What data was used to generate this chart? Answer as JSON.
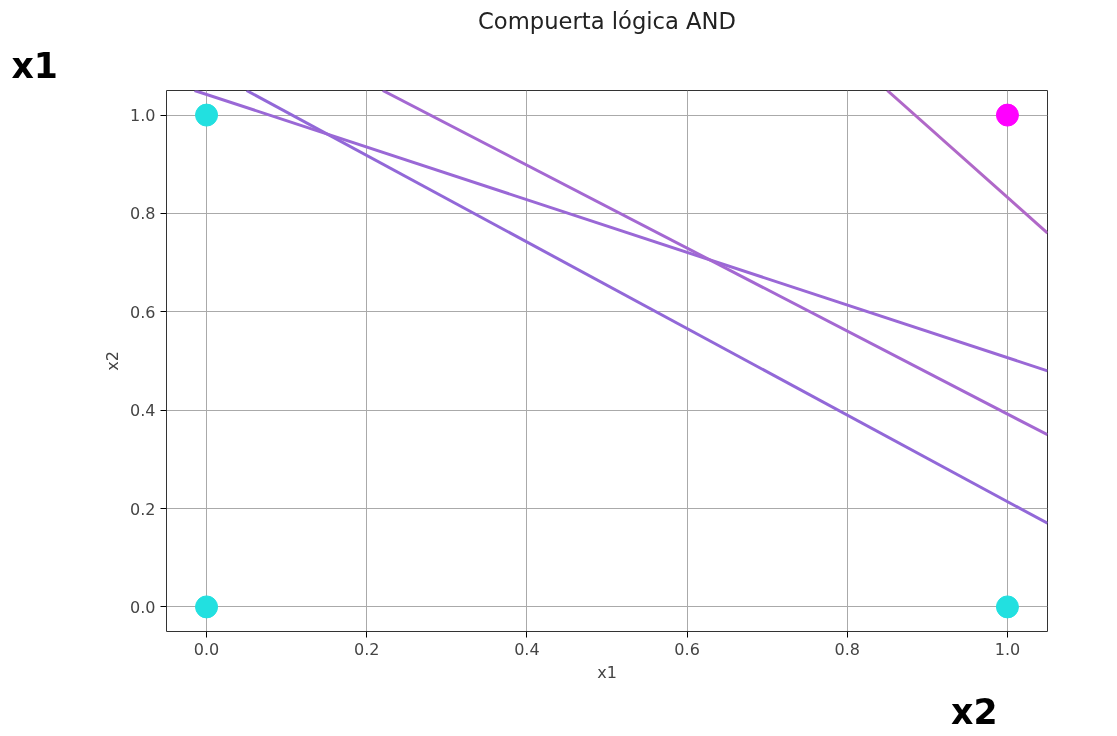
{
  "chart_data": {
    "type": "scatter",
    "title": "Compuerta lógica AND",
    "xlabel": "x1",
    "ylabel": "x2",
    "annotations": [
      "x1",
      "x2"
    ],
    "xlim": [
      -0.05,
      1.05
    ],
    "ylim": [
      -0.05,
      1.05
    ],
    "xticks": [
      {
        "value": 0,
        "label": "0.0"
      },
      0.2,
      0.4,
      0.6,
      0.8,
      {
        "value": 1,
        "label": "1.0"
      }
    ],
    "yticks": [
      {
        "value": 0,
        "label": "0.0"
      },
      0.2,
      0.4,
      0.6,
      0.8,
      {
        "value": 1,
        "label": "1.0"
      }
    ],
    "grid": true,
    "line_style": "solid",
    "series": [
      {
        "marker": "circle",
        "x": [
          0,
          0,
          1,
          1
        ],
        "values": [
          0,
          1,
          0,
          1
        ],
        "colors": [
          "#22e0e0",
          "#22e0e0",
          "#22e0e0",
          "#ff00ff"
        ]
      },
      {
        "type": "line",
        "x": [
          0.05,
          1.05
        ],
        "values": [
          1.05,
          0.17
        ],
        "color": "#9268d8"
      },
      {
        "type": "line",
        "x": [
          -0.015,
          1.05
        ],
        "values": [
          1.05,
          0.48
        ],
        "color": "#9a68d6"
      },
      {
        "type": "line",
        "x": [
          0.22,
          1.05
        ],
        "values": [
          1.05,
          0.35
        ],
        "color": "#a468d2"
      },
      {
        "type": "line",
        "x": [
          0.85,
          1.05
        ],
        "values": [
          1.05,
          0.76
        ],
        "color": "#b068c8"
      }
    ]
  }
}
